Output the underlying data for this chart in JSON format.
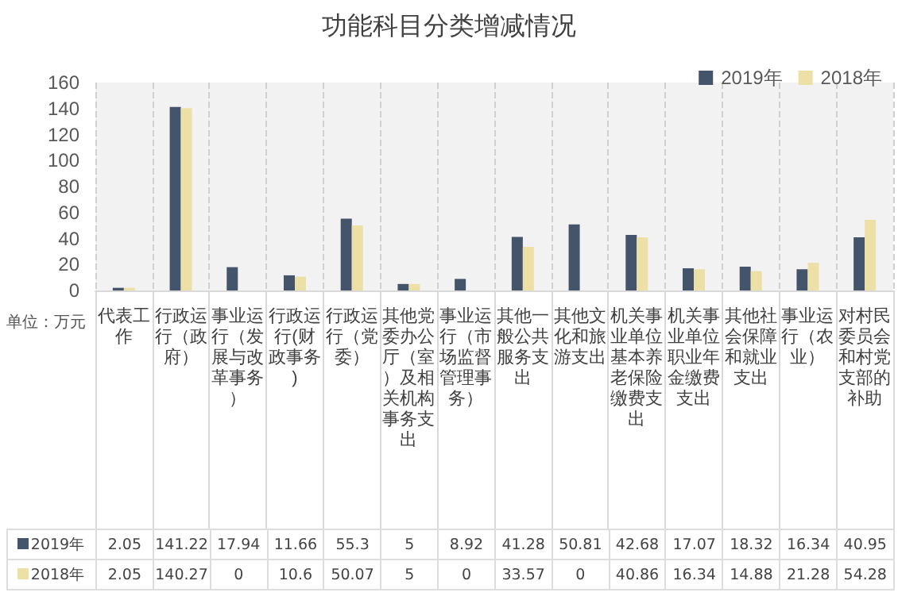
{
  "chart_data": {
    "type": "bar",
    "title": "功能科目分类增减情况",
    "categories": [
      "代表工作",
      "行政运行（政府）",
      "事业运行（发展与改革事务）",
      "行政运行(财政事务)",
      "行政运行（党委）",
      "其他党委办公厅（室）及相关机构事务支出",
      "事业运行（市场监督管理事务）",
      "其他一般公共服务支出",
      "其他文化和旅游支出",
      "机关事业单位基本养老保险缴费支出",
      "机关事业单位职业年金缴费支出",
      "其他社会保障和就业支出",
      "事业运行（农业）",
      "对村民委员会和村党支部的补助"
    ],
    "series": [
      {
        "name": "2019年",
        "color": "#44546a",
        "values": [
          2.05,
          141.22,
          17.94,
          11.66,
          55.3,
          5,
          8.92,
          41.28,
          50.81,
          42.68,
          17.07,
          18.32,
          16.34,
          40.95
        ]
      },
      {
        "name": "2018年",
        "color": "#ede0a6",
        "values": [
          2.05,
          140.27,
          0,
          10.6,
          50.07,
          5,
          0,
          33.57,
          0,
          40.86,
          16.34,
          14.88,
          21.28,
          54.28
        ]
      }
    ],
    "ylim": [
      0,
      160
    ],
    "yticks": [
      0,
      20,
      40,
      60,
      80,
      100,
      120,
      140,
      160
    ],
    "annotations": [
      "单位：万元"
    ],
    "data_labels": true,
    "grid": "x",
    "legend": "top right"
  }
}
